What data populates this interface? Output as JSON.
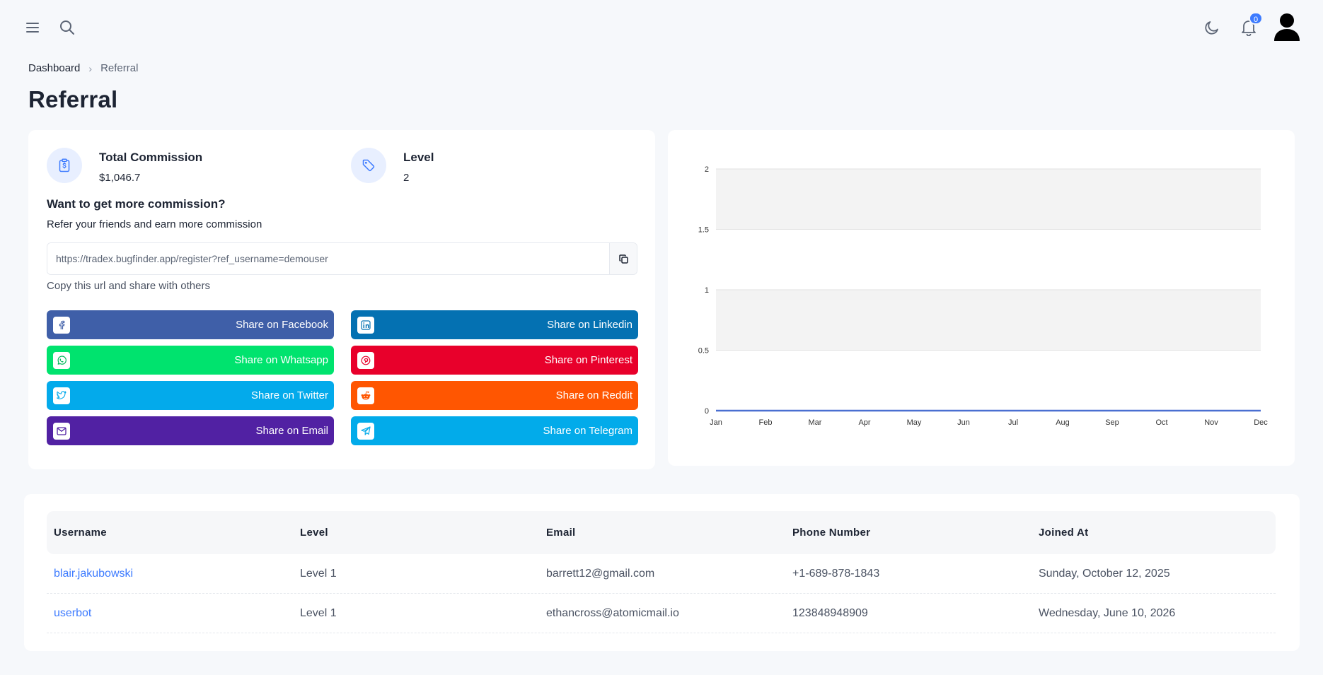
{
  "header": {
    "notification_count": "0"
  },
  "breadcrumb": {
    "home": "Dashboard",
    "separator": "›",
    "current": "Referral"
  },
  "page": {
    "title": "Referral"
  },
  "stats": {
    "commission_label": "Total Commission",
    "commission_value": "$1,046.7",
    "level_label": "Level",
    "level_value": "2"
  },
  "referral": {
    "title": "Want to get more commission?",
    "subtitle": "Refer your friends and earn more commission",
    "url": "https://tradex.bugfinder.app/register?ref_username=demouser",
    "hint": "Copy this url and share with others"
  },
  "share_buttons": [
    {
      "label": "Share on Facebook",
      "icon": "facebook-icon",
      "color": "#3f5fa8"
    },
    {
      "label": "Share on Linkedin",
      "icon": "linkedin-icon",
      "color": "#0471b2"
    },
    {
      "label": "Share on Whatsapp",
      "icon": "whatsapp-icon",
      "color": "#00e36e"
    },
    {
      "label": "Share on Pinterest",
      "icon": "pinterest-icon",
      "color": "#e8002b"
    },
    {
      "label": "Share on Twitter",
      "icon": "twitter-icon",
      "color": "#03aaeb"
    },
    {
      "label": "Share on Reddit",
      "icon": "reddit-icon",
      "color": "#ff5601"
    },
    {
      "label": "Share on Email",
      "icon": "email-icon",
      "color": "#5121a3"
    },
    {
      "label": "Share on Telegram",
      "icon": "telegram-icon",
      "color": "#02abea"
    }
  ],
  "chart_data": {
    "type": "area",
    "categories": [
      "Jan",
      "Feb",
      "Mar",
      "Apr",
      "May",
      "Jun",
      "Jul",
      "Aug",
      "Sep",
      "Oct",
      "Nov",
      "Dec"
    ],
    "series": [
      {
        "values": [
          0,
          0,
          0,
          0,
          0,
          0,
          0,
          0,
          0,
          0,
          0,
          0
        ],
        "color": "#4a6fd1"
      }
    ],
    "yticks": [
      "0",
      "0.5",
      "1",
      "1.5",
      "2"
    ],
    "ylim": [
      0,
      2
    ],
    "grid": true,
    "title": "",
    "xlabel": "",
    "ylabel": ""
  },
  "table": {
    "headers": [
      "Username",
      "Level",
      "Email",
      "Phone Number",
      "Joined At"
    ],
    "rows": [
      [
        "blair.jakubowski",
        "Level 1",
        "barrett12@gmail.com",
        "+1-689-878-1843",
        "Sunday, October 12, 2025"
      ],
      [
        "userbot",
        "Level 1",
        "ethancross@atomicmail.io",
        "123848948909",
        "Wednesday, June 10, 2026"
      ]
    ]
  }
}
